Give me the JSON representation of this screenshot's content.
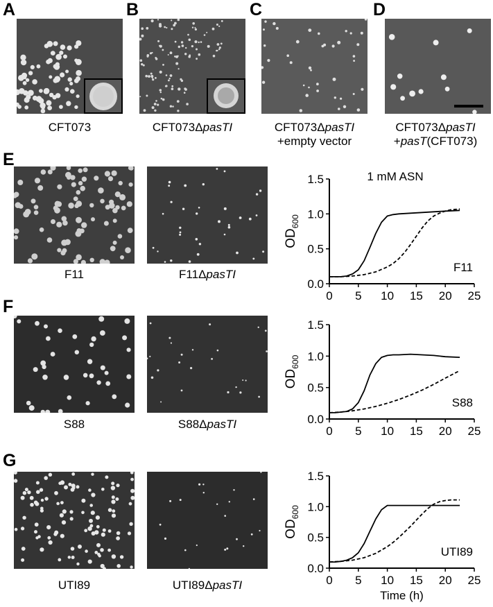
{
  "panels_top": [
    {
      "letter": "A",
      "caption_pre": "CFT073",
      "caption_ital": "",
      "caption_post": "",
      "caption2_pre": "",
      "caption2_ital": "",
      "caption2_post": ""
    },
    {
      "letter": "B",
      "caption_pre": "CFT073Δ",
      "caption_ital": "pasTI",
      "caption_post": "",
      "caption2_pre": "",
      "caption2_ital": "",
      "caption2_post": ""
    },
    {
      "letter": "C",
      "caption_pre": "CFT073Δ",
      "caption_ital": "pasTI",
      "caption_post": "",
      "caption2_pre": "+empty vector",
      "caption2_ital": "",
      "caption2_post": ""
    },
    {
      "letter": "D",
      "caption_pre": "CFT073Δ",
      "caption_ital": "pasTI",
      "caption_post": "",
      "caption2_pre": "+",
      "caption2_ital": "pasT",
      "caption2_post": "(CFT073)"
    }
  ],
  "rows": [
    {
      "letter": "E",
      "left_caption": "F11",
      "right_caption_pre": "F11Δ",
      "right_caption_ital": "pasTI"
    },
    {
      "letter": "F",
      "left_caption": "S88",
      "right_caption_pre": "S88Δ",
      "right_caption_ital": "pasTI"
    },
    {
      "letter": "G",
      "left_caption": "UTI89",
      "right_caption_pre": "UTI89Δ",
      "right_caption_ital": "pasTI"
    }
  ],
  "chart_data": [
    {
      "type": "line",
      "title": "1 mM ASN",
      "annotation": "F11",
      "xlabel": "",
      "ylabel_main": "OD",
      "ylabel_sub": "600",
      "xlim": [
        0,
        25
      ],
      "ylim": [
        0,
        1.5
      ],
      "xticks": [
        0,
        5,
        10,
        15,
        20,
        25
      ],
      "yticks": [
        "0.0",
        "0.5",
        "1.0",
        "1.5"
      ],
      "series": [
        {
          "style": "solid",
          "x": [
            0,
            1,
            2,
            3,
            4,
            5,
            6,
            7,
            8,
            9,
            10,
            11,
            12,
            14,
            16,
            18,
            20,
            22.5
          ],
          "y": [
            0.1,
            0.1,
            0.1,
            0.11,
            0.14,
            0.2,
            0.33,
            0.52,
            0.72,
            0.88,
            0.97,
            0.99,
            1.0,
            1.01,
            1.02,
            1.03,
            1.04,
            1.05
          ]
        },
        {
          "style": "dashed",
          "x": [
            0,
            2,
            4,
            6,
            8,
            10,
            11,
            12,
            13,
            14,
            15,
            16,
            17,
            18,
            19,
            20,
            21,
            22.5
          ],
          "y": [
            0.1,
            0.1,
            0.11,
            0.13,
            0.17,
            0.24,
            0.29,
            0.36,
            0.45,
            0.56,
            0.68,
            0.8,
            0.9,
            0.97,
            1.01,
            1.04,
            1.06,
            1.07
          ]
        }
      ]
    },
    {
      "type": "line",
      "title": "",
      "annotation": "S88",
      "xlabel": "",
      "ylabel_main": "OD",
      "ylabel_sub": "600",
      "xlim": [
        0,
        25
      ],
      "ylim": [
        0,
        1.5
      ],
      "xticks": [
        0,
        5,
        10,
        15,
        20,
        25
      ],
      "yticks": [
        "0.0",
        "0.5",
        "1.0",
        "1.5"
      ],
      "series": [
        {
          "style": "solid",
          "x": [
            0,
            1,
            2,
            3,
            4,
            5,
            6,
            7,
            8,
            9,
            10,
            11,
            12,
            14,
            16,
            18,
            20,
            22.5
          ],
          "y": [
            0.1,
            0.1,
            0.11,
            0.12,
            0.16,
            0.26,
            0.45,
            0.7,
            0.88,
            0.98,
            1.01,
            1.02,
            1.02,
            1.03,
            1.02,
            1.01,
            0.99,
            0.98
          ]
        },
        {
          "style": "dashed",
          "x": [
            0,
            2,
            4,
            6,
            8,
            10,
            12,
            14,
            16,
            18,
            20,
            22.5
          ],
          "y": [
            0.1,
            0.11,
            0.13,
            0.16,
            0.2,
            0.25,
            0.31,
            0.38,
            0.46,
            0.55,
            0.65,
            0.77
          ]
        }
      ]
    },
    {
      "type": "line",
      "title": "",
      "annotation": "UTI89",
      "xlabel": "Time (h)",
      "ylabel_main": "OD",
      "ylabel_sub": "600",
      "xlim": [
        0,
        25
      ],
      "ylim": [
        0,
        1.5
      ],
      "xticks": [
        0,
        5,
        10,
        15,
        20,
        25
      ],
      "yticks": [
        "0.0",
        "0.5",
        "1.0",
        "1.5"
      ],
      "series": [
        {
          "style": "solid",
          "x": [
            0,
            1,
            2,
            3,
            4,
            5,
            6,
            7,
            8,
            9,
            10,
            11,
            12,
            14,
            16,
            18,
            20,
            22.5
          ],
          "y": [
            0.1,
            0.1,
            0.11,
            0.13,
            0.17,
            0.25,
            0.4,
            0.6,
            0.8,
            0.95,
            1.02,
            1.02,
            1.02,
            1.02,
            1.02,
            1.02,
            1.02,
            1.02
          ]
        },
        {
          "style": "dashed",
          "x": [
            0,
            2,
            4,
            6,
            8,
            10,
            11,
            12,
            13,
            14,
            15,
            16,
            17,
            18,
            19,
            20,
            21,
            22.5
          ],
          "y": [
            0.1,
            0.11,
            0.13,
            0.17,
            0.24,
            0.35,
            0.42,
            0.5,
            0.59,
            0.68,
            0.78,
            0.88,
            0.97,
            1.04,
            1.08,
            1.1,
            1.11,
            1.11
          ]
        }
      ]
    }
  ]
}
